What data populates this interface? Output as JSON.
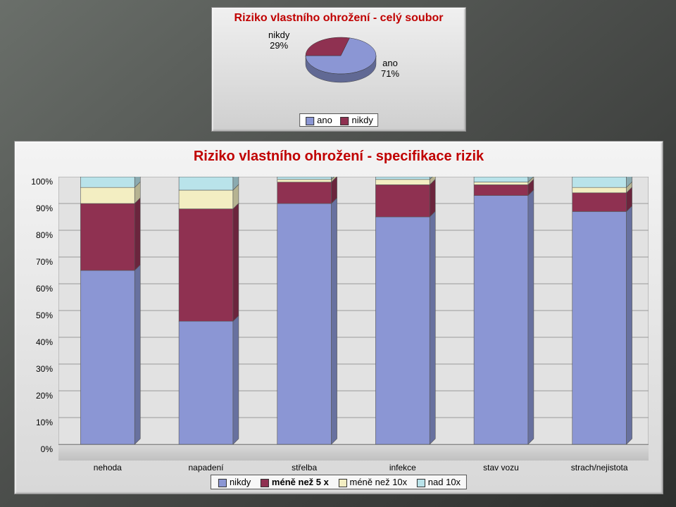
{
  "colors": {
    "blue": "#8b96d4",
    "maroon": "#8f3151",
    "cream": "#f3eec2",
    "cyan": "#b9e3ea",
    "title": "#c00000"
  },
  "pie": {
    "title": "Riziko vlastního ohrožení -\ncelý soubor",
    "labels": {
      "nikdy": "nikdy",
      "ano": "ano"
    },
    "percents": {
      "nikdy": "29%",
      "ano": "71%"
    },
    "values": {
      "ano": 71,
      "nikdy": 29
    },
    "legend": [
      "ano",
      "nikdy"
    ],
    "slice_colors": {
      "ano": "#8b96d4",
      "nikdy": "#8f3151"
    }
  },
  "bars": {
    "title": "Riziko vlastního ohrožení - specifikace rizik",
    "ylabels": [
      "0%",
      "10%",
      "20%",
      "30%",
      "40%",
      "50%",
      "60%",
      "70%",
      "80%",
      "90%",
      "100%"
    ],
    "ylim": [
      0,
      100
    ],
    "categories": [
      "nehoda",
      "napadení",
      "střelba",
      "infekce",
      "stav vozu",
      "strach/nejistota"
    ],
    "series": [
      "nikdy",
      "méně než 5 x",
      "méně než 10x",
      "nad 10x"
    ],
    "series_colors": [
      "#8b96d4",
      "#8f3151",
      "#f3eec2",
      "#b9e3ea"
    ],
    "data": {
      "nehoda": [
        65,
        25,
        6,
        4
      ],
      "napadení": [
        46,
        42,
        7,
        5
      ],
      "střelba": [
        90,
        8,
        1,
        1
      ],
      "infekce": [
        85,
        12,
        2,
        1
      ],
      "stav vozu": [
        93,
        4,
        1,
        2
      ],
      "strach/nejistota": [
        87,
        7,
        2,
        4
      ]
    },
    "bar_width_ratio": 0.55,
    "depth_x": 8,
    "depth_y": 8
  },
  "legend_labels": {
    "nikdy": "nikdy",
    "m5": "méně než 5 x",
    "m10": "méně než 10x",
    "n10": "nad 10x"
  }
}
